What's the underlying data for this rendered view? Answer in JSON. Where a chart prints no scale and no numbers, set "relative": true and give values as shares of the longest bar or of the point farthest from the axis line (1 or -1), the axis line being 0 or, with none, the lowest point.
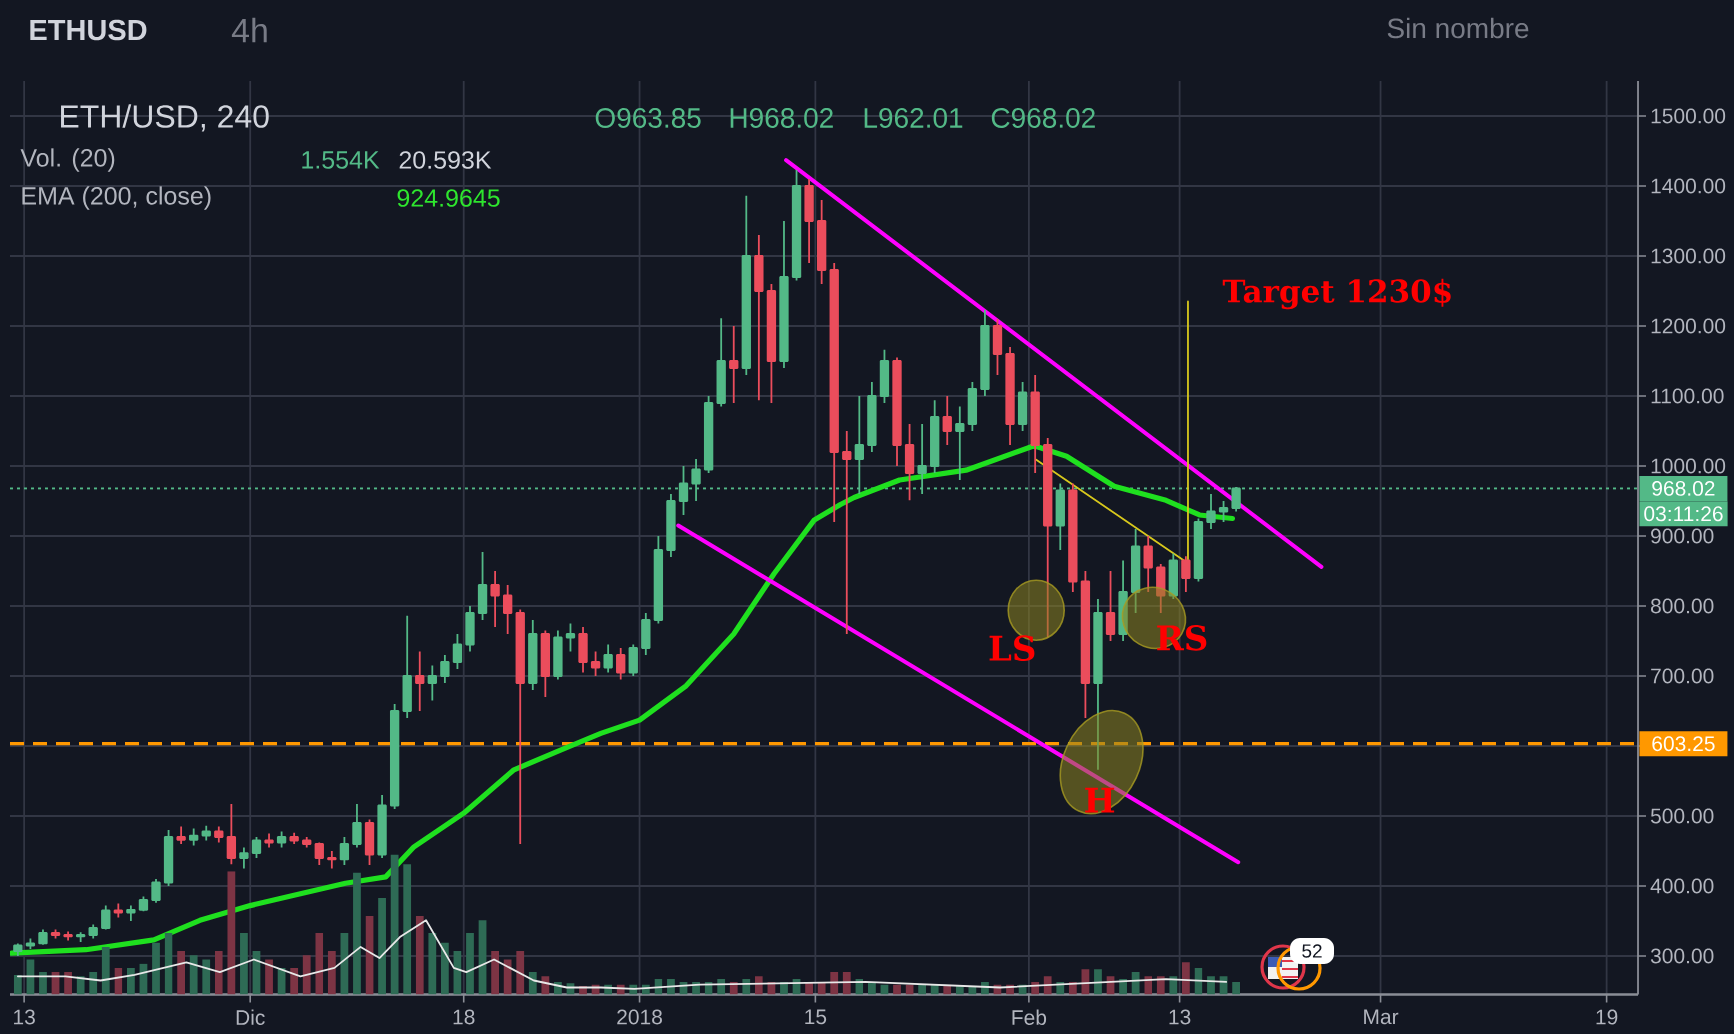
{
  "chart_data": [
    {
      "type": "candlestick",
      "title": "ETH/USD, 240",
      "x": [
        "2017-11-12T12:00",
        "2017-11-13T12:00",
        "2017-11-14T12:00",
        "2017-11-15T12:00",
        "2017-11-16T12:00",
        "2017-11-17T12:00",
        "2017-11-18T12:00",
        "2017-11-19T12:00",
        "2017-11-20T12:00",
        "2017-11-21T12:00",
        "2017-11-22T12:00",
        "2017-11-23T12:00",
        "2017-11-24T12:00",
        "2017-11-25T12:00",
        "2017-11-26T12:00",
        "2017-11-27T12:00",
        "2017-11-28T12:00",
        "2017-11-29T12:00",
        "2017-11-30T12:00",
        "2017-12-01T12:00",
        "2017-12-02T12:00",
        "2017-12-03T12:00",
        "2017-12-04T12:00",
        "2017-12-05T12:00",
        "2017-12-06T12:00",
        "2017-12-07T12:00",
        "2017-12-08T12:00",
        "2017-12-09T12:00",
        "2017-12-10T12:00",
        "2017-12-11T12:00",
        "2017-12-12T12:00",
        "2017-12-13T12:00",
        "2017-12-14T12:00",
        "2017-12-15T12:00",
        "2017-12-16T12:00",
        "2017-12-17T12:00",
        "2017-12-18T12:00",
        "2017-12-19T12:00",
        "2017-12-20T12:00",
        "2017-12-21T12:00",
        "2017-12-22T12:00",
        "2017-12-23T12:00",
        "2017-12-24T12:00",
        "2017-12-25T12:00",
        "2017-12-26T12:00",
        "2017-12-27T12:00",
        "2017-12-28T12:00",
        "2017-12-29T12:00",
        "2017-12-30T12:00",
        "2017-12-31T12:00",
        "2018-01-01T12:00",
        "2018-01-02T12:00",
        "2018-01-03T12:00",
        "2018-01-04T12:00",
        "2018-01-05T12:00",
        "2018-01-06T12:00",
        "2018-01-07T12:00",
        "2018-01-08T12:00",
        "2018-01-09T12:00",
        "2018-01-10T12:00",
        "2018-01-11T12:00",
        "2018-01-12T12:00",
        "2018-01-13T12:00",
        "2018-01-14T12:00",
        "2018-01-15T12:00",
        "2018-01-16T12:00",
        "2018-01-17T12:00",
        "2018-01-18T12:00",
        "2018-01-19T12:00",
        "2018-01-20T12:00",
        "2018-01-21T12:00",
        "2018-01-22T12:00",
        "2018-01-23T12:00",
        "2018-01-24T12:00",
        "2018-01-25T12:00",
        "2018-01-26T12:00",
        "2018-01-27T12:00",
        "2018-01-28T12:00",
        "2018-01-29T12:00",
        "2018-01-30T12:00",
        "2018-01-31T12:00",
        "2018-02-01T12:00",
        "2018-02-02T12:00",
        "2018-02-03T12:00",
        "2018-02-04T12:00",
        "2018-02-05T12:00",
        "2018-02-06T12:00",
        "2018-02-07T12:00",
        "2018-02-08T12:00",
        "2018-02-09T12:00",
        "2018-02-10T12:00",
        "2018-02-11T12:00",
        "2018-02-12T12:00",
        "2018-02-13T12:00",
        "2018-02-14T12:00",
        "2018-02-15T12:00",
        "2018-02-16T12:00",
        "2018-02-17T12:00"
      ],
      "ohlc": [
        [
          307,
          318,
          300,
          315
        ],
        [
          315,
          325,
          310,
          318
        ],
        [
          318,
          338,
          316,
          333
        ],
        [
          333,
          338,
          325,
          330
        ],
        [
          330,
          335,
          322,
          328
        ],
        [
          328,
          334,
          320,
          330
        ],
        [
          330,
          345,
          325,
          340
        ],
        [
          340,
          372,
          338,
          365
        ],
        [
          365,
          375,
          355,
          362
        ],
        [
          362,
          372,
          350,
          366
        ],
        [
          366,
          385,
          364,
          380
        ],
        [
          380,
          410,
          376,
          405
        ],
        [
          405,
          480,
          400,
          470
        ],
        [
          470,
          485,
          460,
          466
        ],
        [
          466,
          482,
          458,
          472
        ],
        [
          472,
          486,
          465,
          478
        ],
        [
          478,
          485,
          462,
          470
        ],
        [
          470,
          517,
          431,
          440
        ],
        [
          440,
          455,
          425,
          447
        ],
        [
          447,
          470,
          440,
          465
        ],
        [
          465,
          475,
          455,
          462
        ],
        [
          462,
          478,
          455,
          470
        ],
        [
          470,
          476,
          460,
          465
        ],
        [
          465,
          470,
          455,
          460
        ],
        [
          460,
          462,
          430,
          440
        ],
        [
          440,
          450,
          425,
          438
        ],
        [
          438,
          470,
          430,
          460
        ],
        [
          460,
          517,
          455,
          490
        ],
        [
          490,
          495,
          430,
          445
        ],
        [
          445,
          530,
          440,
          515
        ],
        [
          515,
          660,
          510,
          650
        ],
        [
          650,
          786,
          640,
          700
        ],
        [
          700,
          735,
          650,
          690
        ],
        [
          690,
          715,
          665,
          700
        ],
        [
          700,
          730,
          690,
          720
        ],
        [
          720,
          760,
          710,
          745
        ],
        [
          745,
          800,
          735,
          790
        ],
        [
          790,
          877,
          780,
          830
        ],
        [
          830,
          850,
          770,
          815
        ],
        [
          815,
          830,
          760,
          790
        ],
        [
          790,
          795,
          460,
          690
        ],
        [
          690,
          780,
          680,
          760
        ],
        [
          760,
          765,
          670,
          700
        ],
        [
          700,
          765,
          695,
          755
        ],
        [
          755,
          775,
          735,
          760
        ],
        [
          760,
          770,
          705,
          720
        ],
        [
          720,
          735,
          700,
          712
        ],
        [
          712,
          745,
          705,
          730
        ],
        [
          730,
          740,
          695,
          705
        ],
        [
          705,
          745,
          700,
          740
        ],
        [
          740,
          790,
          730,
          780
        ],
        [
          780,
          900,
          775,
          880
        ],
        [
          880,
          960,
          870,
          950
        ],
        [
          950,
          1000,
          930,
          975
        ],
        [
          975,
          1010,
          950,
          995
        ],
        [
          995,
          1100,
          990,
          1090
        ],
        [
          1090,
          1211,
          1085,
          1150
        ],
        [
          1150,
          1200,
          1090,
          1140
        ],
        [
          1140,
          1386,
          1130,
          1300
        ],
        [
          1300,
          1330,
          1094,
          1250
        ],
        [
          1250,
          1260,
          1090,
          1150
        ],
        [
          1150,
          1350,
          1140,
          1270
        ],
        [
          1270,
          1423,
          1265,
          1400
        ],
        [
          1400,
          1410,
          1290,
          1350
        ],
        [
          1350,
          1380,
          1260,
          1280
        ],
        [
          1280,
          1290,
          920,
          1020
        ],
        [
          1020,
          1050,
          760,
          1010
        ],
        [
          1010,
          1100,
          960,
          1030
        ],
        [
          1030,
          1120,
          1020,
          1100
        ],
        [
          1100,
          1166,
          1090,
          1150
        ],
        [
          1150,
          1155,
          1000,
          1030
        ],
        [
          1030,
          1060,
          951,
          990
        ],
        [
          990,
          1060,
          960,
          1000
        ],
        [
          1000,
          1094,
          990,
          1070
        ],
        [
          1070,
          1100,
          1030,
          1050
        ],
        [
          1050,
          1085,
          980,
          1060
        ],
        [
          1060,
          1120,
          1050,
          1110
        ],
        [
          1110,
          1223,
          1100,
          1200
        ],
        [
          1200,
          1210,
          1130,
          1160
        ],
        [
          1160,
          1170,
          1030,
          1060
        ],
        [
          1060,
          1120,
          1050,
          1105
        ],
        [
          1105,
          1130,
          990,
          1030
        ],
        [
          1030,
          1040,
          755,
          915
        ],
        [
          915,
          975,
          880,
          965
        ],
        [
          965,
          975,
          820,
          835
        ],
        [
          835,
          850,
          640,
          690
        ],
        [
          690,
          810,
          566,
          790
        ],
        [
          790,
          850,
          750,
          760
        ],
        [
          760,
          865,
          750,
          820
        ],
        [
          820,
          910,
          790,
          885
        ],
        [
          885,
          900,
          820,
          855
        ],
        [
          855,
          860,
          790,
          815
        ],
        [
          815,
          875,
          810,
          865
        ],
        [
          865,
          871,
          820,
          840
        ],
        [
          840,
          925,
          835,
          920
        ],
        [
          920,
          960,
          910,
          935
        ],
        [
          935,
          950,
          920,
          940
        ],
        [
          940,
          970,
          935,
          968.02
        ]
      ],
      "colors": [
        "#53b987",
        "#53b987",
        "#53b987",
        "#eb4d5c",
        "#eb4d5c",
        "#53b987",
        "#53b987",
        "#53b987",
        "#eb4d5c",
        "#53b987",
        "#53b987",
        "#53b987",
        "#53b987",
        "#eb4d5c",
        "#53b987",
        "#53b987",
        "#eb4d5c",
        "#eb4d5c",
        "#53b987",
        "#53b987",
        "#eb4d5c",
        "#53b987",
        "#eb4d5c",
        "#eb4d5c",
        "#eb4d5c",
        "#eb4d5c",
        "#53b987",
        "#53b987",
        "#eb4d5c",
        "#53b987",
        "#53b987",
        "#53b987",
        "#eb4d5c",
        "#53b987",
        "#53b987",
        "#53b987",
        "#53b987",
        "#53b987",
        "#eb4d5c",
        "#eb4d5c",
        "#eb4d5c",
        "#53b987",
        "#eb4d5c",
        "#53b987",
        "#53b987",
        "#eb4d5c",
        "#eb4d5c",
        "#53b987",
        "#eb4d5c",
        "#53b987",
        "#53b987",
        "#53b987",
        "#53b987",
        "#53b987",
        "#53b987",
        "#53b987",
        "#53b987",
        "#eb4d5c",
        "#53b987",
        "#eb4d5c",
        "#eb4d5c",
        "#53b987",
        "#53b987",
        "#eb4d5c",
        "#eb4d5c",
        "#eb4d5c",
        "#eb4d5c",
        "#53b987",
        "#53b987",
        "#53b987",
        "#eb4d5c",
        "#eb4d5c",
        "#53b987",
        "#53b987",
        "#eb4d5c",
        "#53b987",
        "#53b987",
        "#53b987",
        "#eb4d5c",
        "#eb4d5c",
        "#53b987",
        "#eb4d5c",
        "#eb4d5c",
        "#53b987",
        "#eb4d5c",
        "#eb4d5c",
        "#53b987",
        "#eb4d5c",
        "#53b987",
        "#53b987",
        "#eb4d5c",
        "#eb4d5c",
        "#53b987",
        "#eb4d5c",
        "#53b987",
        "#53b987",
        "#53b987",
        "#53b987"
      ],
      "series": [
        {
          "type": "line",
          "color": "#1fe01f",
          "x": [
            "2017-11-12T00:00",
            "2017-11-17T22:00",
            "2017-11-23T08:00",
            "2017-11-27T00:00",
            "2017-12-01T00:00",
            "2017-12-05T00:00",
            "2017-12-08T14:00",
            "2017-12-11T19:00",
            "2017-12-14T01:00",
            "2017-12-18T00:00",
            "2017-12-22T00:00",
            "2017-12-25T17:00",
            "2017-12-28T22:00",
            "2018-01-01T00:00",
            "2018-01-04T17:00",
            "2018-01-08T12:00",
            "2018-01-11T17:00",
            "2018-01-14T22:00",
            "2018-01-17T00:00",
            "2018-01-18T02:00",
            "2018-01-21T17:00",
            "2018-01-27T00:00",
            "2018-02-01T10:00",
            "2018-02-04T00:00",
            "2018-02-07T19:00",
            "2018-02-11T22:00",
            "2018-02-14T14:00",
            "2018-02-17T05:00"
          ],
          "values": [
            304,
            309,
            323,
            351,
            372,
            389,
            404,
            413,
            456,
            504,
            566,
            594,
            618,
            637,
            686,
            760,
            846,
            923,
            945,
            955,
            980,
            994,
            1029,
            1014,
            971,
            951,
            930,
            925
          ]
        },
        {
          "type": "line",
          "color": "#ff00ff",
          "x": [
            "2018-01-12T16:00",
            "2018-02-24T07:00"
          ],
          "values": [
            1437,
            856
          ]
        },
        {
          "type": "line",
          "color": "#ff00ff",
          "x": [
            "2018-01-04T02:00",
            "2018-02-17T16:00"
          ],
          "values": [
            915,
            434
          ]
        },
        {
          "type": "line",
          "color": "#d8c81c",
          "x": [
            "2018-02-01T14:00",
            "2018-02-13T16:00",
            "2018-02-13T16:00"
          ],
          "values": [
            1009,
            861,
            1235
          ]
        }
      ],
      "xlim": [
        "2017-11-11T21:00",
        "2018-03-21T12:00"
      ],
      "xticks": [
        {
          "value": "2017-11-13",
          "label": "13"
        },
        {
          "value": "2017-12-01",
          "label": "Dic"
        },
        {
          "value": "2017-12-18",
          "label": "18"
        },
        {
          "value": "2018-01-01",
          "label": "2018"
        },
        {
          "value": "2018-01-15",
          "label": "15"
        },
        {
          "value": "2018-02-01",
          "label": "Feb"
        },
        {
          "value": "2018-02-13",
          "label": "13"
        },
        {
          "value": "2018-03-01",
          "label": "Mar"
        },
        {
          "value": "2018-03-19",
          "label": "19"
        }
      ],
      "ylim": [
        245,
        1550
      ],
      "yticks": [
        {
          "value": 300,
          "label": "300.00"
        },
        {
          "value": 400,
          "label": "400.00"
        },
        {
          "value": 500,
          "label": "500.00"
        },
        {
          "value": 600,
          "label": null
        },
        {
          "value": 700,
          "label": "700.00"
        },
        {
          "value": 800,
          "label": "800.00"
        },
        {
          "value": 900,
          "label": "900.00"
        },
        {
          "value": 1000,
          "label": "1000.00"
        },
        {
          "value": 1100,
          "label": "1100.00"
        },
        {
          "value": 1200,
          "label": "1200.00"
        },
        {
          "value": 1300,
          "label": "1300.00"
        },
        {
          "value": 1400,
          "label": "1400.00"
        },
        {
          "value": 1500,
          "label": "1500.00"
        }
      ],
      "grid": true,
      "ref_lines": [
        {
          "axis": "y",
          "value": 968.02,
          "label": "968.02",
          "color": "#53b987",
          "line_style": "dotted"
        },
        {
          "axis": "y",
          "value": 603.25,
          "label": "603.25",
          "color": "#ff9800",
          "line_style": "dashed"
        }
      ],
      "annotations": [
        "ETHUSD",
        "4h",
        "Sin nombre",
        "O963.85",
        "H968.02",
        "L962.01",
        "C968.02",
        "Vol. (20)",
        "1.554K",
        "20.593K",
        "EMA (200, close)",
        "924.9645",
        "Target 1230$",
        "03:11:26",
        "52",
        {
          "text": "LS",
          "x": "2018-02-01T14:00",
          "y": 794
        },
        {
          "text": "H",
          "x": "2018-02-06T19:00",
          "y": 577
        },
        {
          "text": "RS",
          "x": "2018-02-10T23:00",
          "y": 783
        }
      ]
    },
    {
      "type": "bar",
      "relative": true,
      "xlim": [
        "2017-11-11T21:00",
        "2018-03-21T12:00"
      ],
      "series": [
        {
          "type": "bar",
          "x": [
            "2017-11-12T12:00",
            "2017-11-13T12:00",
            "2017-11-14T12:00",
            "2017-11-15T12:00",
            "2017-11-16T12:00",
            "2017-11-17T12:00",
            "2017-11-18T12:00",
            "2017-11-19T12:00",
            "2017-11-20T12:00",
            "2017-11-21T12:00",
            "2017-11-22T12:00",
            "2017-11-23T12:00",
            "2017-11-24T12:00",
            "2017-11-25T12:00",
            "2017-11-26T12:00",
            "2017-11-27T12:00",
            "2017-11-28T12:00",
            "2017-11-29T12:00",
            "2017-11-30T12:00",
            "2017-12-01T12:00",
            "2017-12-02T12:00",
            "2017-12-03T12:00",
            "2017-12-04T12:00",
            "2017-12-05T12:00",
            "2017-12-06T12:00",
            "2017-12-07T12:00",
            "2017-12-08T12:00",
            "2017-12-09T12:00",
            "2017-12-10T12:00",
            "2017-12-11T12:00",
            "2017-12-12T12:00",
            "2017-12-13T12:00",
            "2017-12-14T12:00",
            "2017-12-15T12:00",
            "2017-12-16T12:00",
            "2017-12-17T12:00",
            "2017-12-18T12:00",
            "2017-12-19T12:00",
            "2017-12-20T12:00",
            "2017-12-21T12:00",
            "2017-12-22T12:00",
            "2017-12-23T12:00",
            "2017-12-24T12:00",
            "2017-12-25T12:00",
            "2017-12-26T12:00",
            "2017-12-27T12:00",
            "2017-12-28T12:00",
            "2017-12-29T12:00",
            "2017-12-30T12:00",
            "2017-12-31T12:00",
            "2018-01-01T12:00",
            "2018-01-02T12:00",
            "2018-01-03T12:00",
            "2018-01-04T12:00",
            "2018-01-05T12:00",
            "2018-01-06T12:00",
            "2018-01-07T12:00",
            "2018-01-08T12:00",
            "2018-01-09T12:00",
            "2018-01-10T12:00",
            "2018-01-11T12:00",
            "2018-01-12T12:00",
            "2018-01-13T12:00",
            "2018-01-14T12:00",
            "2018-01-15T12:00",
            "2018-01-16T12:00",
            "2018-01-17T12:00",
            "2018-01-18T12:00",
            "2018-01-19T12:00",
            "2018-01-20T12:00",
            "2018-01-21T12:00",
            "2018-01-22T12:00",
            "2018-01-23T12:00",
            "2018-01-24T12:00",
            "2018-01-25T12:00",
            "2018-01-26T12:00",
            "2018-01-27T12:00",
            "2018-01-28T12:00",
            "2018-01-29T12:00",
            "2018-01-30T12:00",
            "2018-01-31T12:00",
            "2018-02-01T12:00",
            "2018-02-02T12:00",
            "2018-02-03T12:00",
            "2018-02-04T12:00",
            "2018-02-05T12:00",
            "2018-02-06T12:00",
            "2018-02-07T12:00",
            "2018-02-08T12:00",
            "2018-02-09T12:00",
            "2018-02-10T12:00",
            "2018-02-11T12:00",
            "2018-02-12T12:00",
            "2018-02-13T12:00",
            "2018-02-14T12:00",
            "2018-02-15T12:00",
            "2018-02-16T12:00",
            "2018-02-17T12:00"
          ],
          "values": [
            0.14,
            0.25,
            0.16,
            0.16,
            0.16,
            0.13,
            0.16,
            0.34,
            0.19,
            0.19,
            0.22,
            0.37,
            0.44,
            0.31,
            0.28,
            0.25,
            0.31,
            0.88,
            0.44,
            0.31,
            0.25,
            0.19,
            0.19,
            0.28,
            0.44,
            0.31,
            0.44,
            0.87,
            0.56,
            0.69,
            1,
            0.93,
            0.56,
            0.44,
            0.37,
            0.31,
            0.44,
            0.53,
            0.31,
            0.25,
            0.31,
            0.16,
            0.13,
            0.09,
            0.08,
            0.06,
            0.07,
            0.07,
            0.07,
            0.07,
            0.07,
            0.11,
            0.11,
            0.09,
            0.09,
            0.09,
            0.11,
            0.09,
            0.11,
            0.13,
            0.09,
            0.09,
            0.11,
            0.09,
            0.09,
            0.16,
            0.16,
            0.11,
            0.09,
            0.07,
            0.07,
            0.07,
            0.07,
            0.07,
            0.06,
            0.06,
            0.06,
            0.09,
            0.07,
            0.07,
            0.07,
            0.09,
            0.13,
            0.09,
            0.09,
            0.18,
            0.18,
            0.13,
            0.11,
            0.16,
            0.13,
            0.13,
            0.13,
            0.23,
            0.19,
            0.13,
            0.13,
            0.09
          ],
          "colors": [
            "#2e6b55",
            "#2e6b55",
            "#2e6b55",
            "#7d3444",
            "#7d3444",
            "#2e6b55",
            "#2e6b55",
            "#2e6b55",
            "#7d3444",
            "#2e6b55",
            "#2e6b55",
            "#2e6b55",
            "#2e6b55",
            "#7d3444",
            "#2e6b55",
            "#2e6b55",
            "#7d3444",
            "#7d3444",
            "#2e6b55",
            "#2e6b55",
            "#7d3444",
            "#2e6b55",
            "#7d3444",
            "#7d3444",
            "#7d3444",
            "#7d3444",
            "#2e6b55",
            "#2e6b55",
            "#7d3444",
            "#2e6b55",
            "#2e6b55",
            "#2e6b55",
            "#7d3444",
            "#2e6b55",
            "#2e6b55",
            "#2e6b55",
            "#2e6b55",
            "#2e6b55",
            "#7d3444",
            "#7d3444",
            "#7d3444",
            "#2e6b55",
            "#7d3444",
            "#2e6b55",
            "#2e6b55",
            "#7d3444",
            "#7d3444",
            "#2e6b55",
            "#7d3444",
            "#2e6b55",
            "#2e6b55",
            "#2e6b55",
            "#2e6b55",
            "#2e6b55",
            "#2e6b55",
            "#2e6b55",
            "#2e6b55",
            "#7d3444",
            "#2e6b55",
            "#7d3444",
            "#7d3444",
            "#2e6b55",
            "#2e6b55",
            "#7d3444",
            "#7d3444",
            "#7d3444",
            "#7d3444",
            "#2e6b55",
            "#2e6b55",
            "#2e6b55",
            "#7d3444",
            "#7d3444",
            "#2e6b55",
            "#2e6b55",
            "#7d3444",
            "#2e6b55",
            "#2e6b55",
            "#2e6b55",
            "#7d3444",
            "#7d3444",
            "#2e6b55",
            "#7d3444",
            "#7d3444",
            "#2e6b55",
            "#7d3444",
            "#7d3444",
            "#2e6b55",
            "#7d3444",
            "#2e6b55",
            "#2e6b55",
            "#7d3444",
            "#7d3444",
            "#2e6b55",
            "#7d3444",
            "#2e6b55",
            "#2e6b55",
            "#2e6b55",
            "#2e6b55"
          ]
        },
        {
          "type": "line",
          "color": "#e8e8e8",
          "x": [
            "2017-11-12T12:00",
            "2017-11-16T07:00",
            "2017-11-19T02:00",
            "2017-11-21T19:00",
            "2017-11-25T22:00",
            "2017-11-28T14:00",
            "2017-12-01T07:00",
            "2017-12-05T00:00",
            "2017-12-07T17:00",
            "2017-12-09T19:00",
            "2017-12-11T07:00",
            "2017-12-12T22:00",
            "2017-12-15T00:00",
            "2017-12-17T05:00",
            "2017-12-18T05:00",
            "2017-12-20T10:00",
            "2017-12-23T14:00",
            "2017-12-26T05:00",
            "2017-12-28T22:00",
            "2017-12-31T14:00",
            "2018-01-05T19:00",
            "2018-01-19T00:00",
            "2018-01-29T17:00",
            "2018-02-11T22:00",
            "2018-02-16T17:00"
          ],
          "values": [
            0.13,
            0.13,
            0.1,
            0.14,
            0.23,
            0.16,
            0.25,
            0.13,
            0.19,
            0.34,
            0.26,
            0.41,
            0.53,
            0.19,
            0.16,
            0.25,
            0.1,
            0.05,
            0.05,
            0.04,
            0.07,
            0.09,
            0.05,
            0.11,
            0.09
          ]
        }
      ]
    }
  ]
}
